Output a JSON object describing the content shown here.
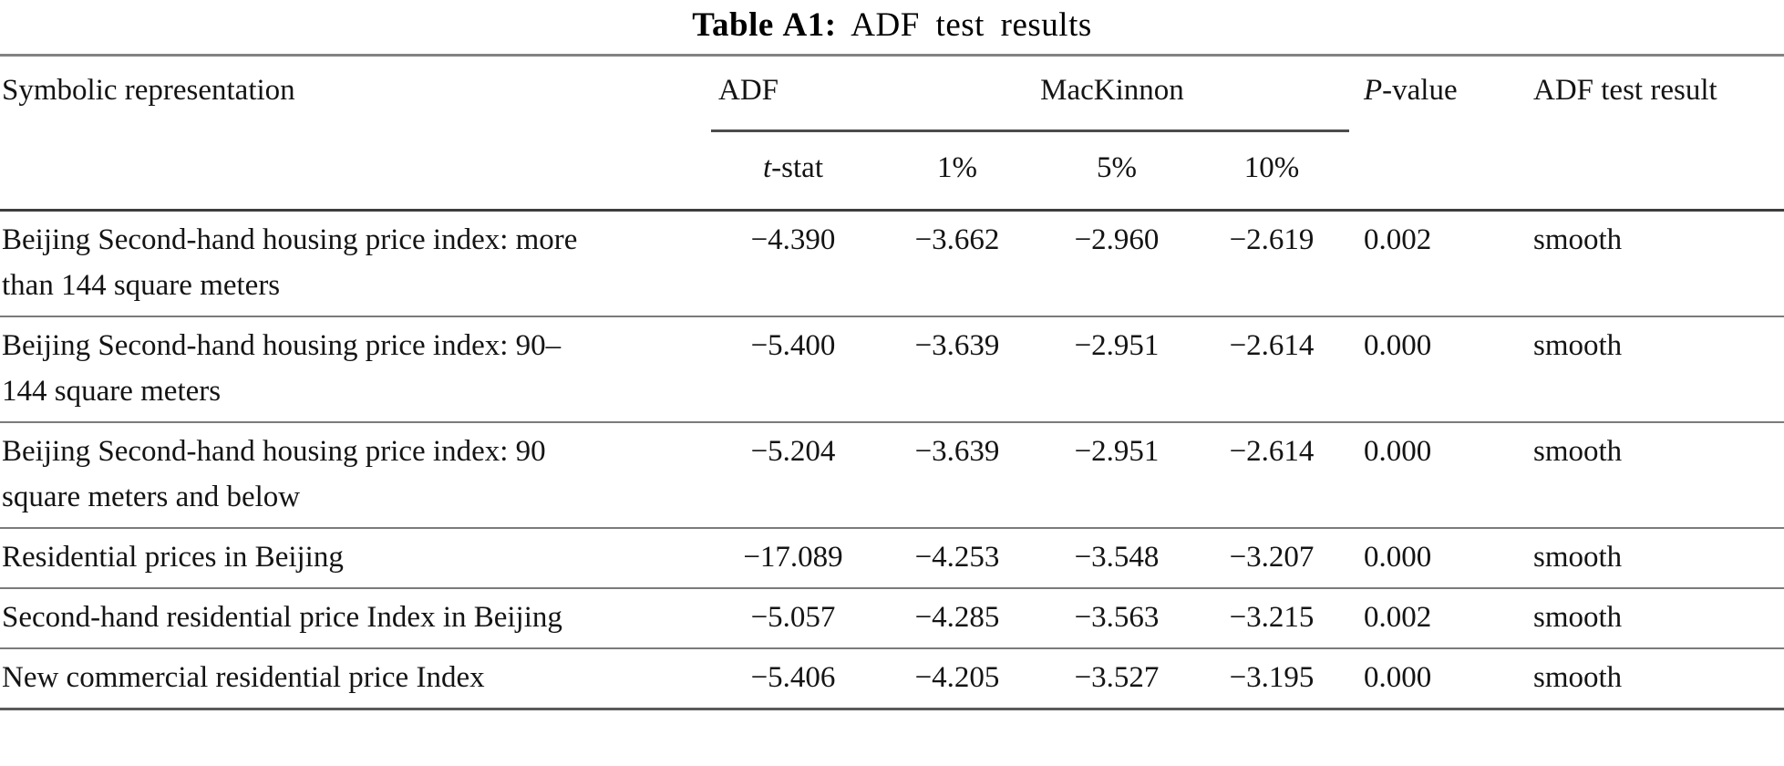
{
  "title": {
    "label": "Table A1:",
    "text": "ADF test results"
  },
  "table": {
    "header": {
      "symbolic": "Symbolic representation",
      "adf": "ADF",
      "mackinnon": "MacKinnon",
      "pvalue_prefix": "P",
      "pvalue_suffix": "-value",
      "adf_result": "ADF test result",
      "tstat_prefix": "t",
      "tstat_suffix": "-stat",
      "crit_1": "1%",
      "crit_5": "5%",
      "crit_10": "10%"
    },
    "rows": [
      {
        "name": "Beijing Second-hand housing price index: more than 144 square meters",
        "tstat": "−4.390",
        "crit1": "−3.662",
        "crit5": "−2.960",
        "crit10": "−2.619",
        "pvalue": "0.002",
        "result": "smooth"
      },
      {
        "name": "Beijing Second-hand housing price index: 90–144 square meters",
        "tstat": "−5.400",
        "crit1": "−3.639",
        "crit5": "−2.951",
        "crit10": "−2.614",
        "pvalue": "0.000",
        "result": "smooth"
      },
      {
        "name": "Beijing Second-hand housing price index: 90 square meters and below",
        "tstat": "−5.204",
        "crit1": "−3.639",
        "crit5": "−2.951",
        "crit10": "−2.614",
        "pvalue": "0.000",
        "result": "smooth"
      },
      {
        "name": "Residential prices in Beijing",
        "tstat": "−17.089",
        "crit1": "−4.253",
        "crit5": "−3.548",
        "crit10": "−3.207",
        "pvalue": "0.000",
        "result": "smooth"
      },
      {
        "name": "Second-hand residential price Index in Beijing",
        "tstat": "−5.057",
        "crit1": "−4.285",
        "crit5": "−3.563",
        "crit10": "−3.215",
        "pvalue": "0.002",
        "result": "smooth"
      },
      {
        "name": "New commercial residential price Index",
        "tstat": "−5.406",
        "crit1": "−4.205",
        "crit5": "−3.527",
        "crit10": "−3.195",
        "pvalue": "0.000",
        "result": "smooth"
      }
    ]
  }
}
